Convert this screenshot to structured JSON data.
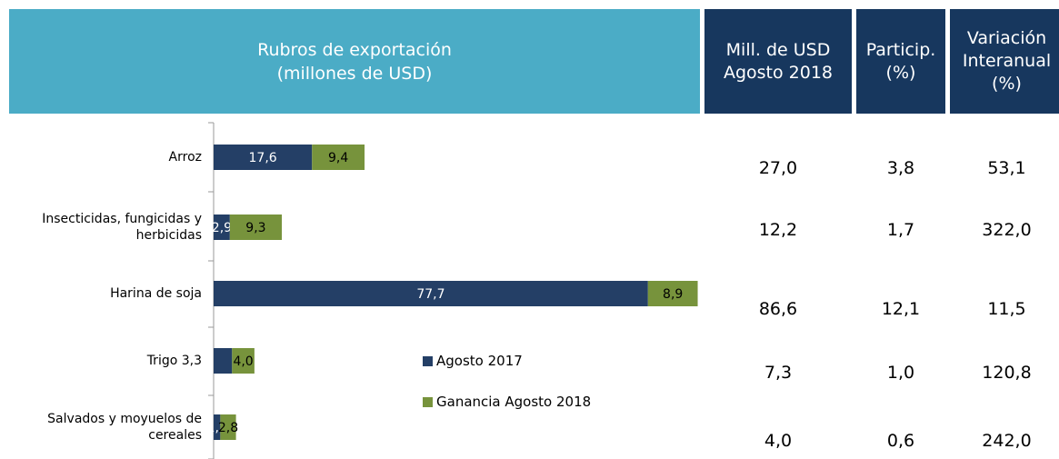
{
  "chart_data": {
    "type": "stacked_barh",
    "header": [
      "Rubros de exportación",
      "(millones de USD)"
    ],
    "categories": [
      "Arroz",
      "Insecticidas, fungicidas y herbicidas",
      "Harina de soja",
      "Trigo 3,3",
      "Salvados y moyuelos de cereales"
    ],
    "series": [
      {
        "name": "Agosto 2017",
        "color": "#243f66",
        "values": [
          17.6,
          2.9,
          77.7,
          3.3,
          1.2
        ],
        "value_labels": [
          "17,6",
          "2,9",
          "77,7",
          null,
          "1,2"
        ]
      },
      {
        "name": "Ganancia Agosto 2018",
        "color": "#77933c",
        "values": [
          9.4,
          9.3,
          8.9,
          4.0,
          2.8
        ],
        "value_labels": [
          "9,4",
          "9,3",
          "8,9",
          "4,0",
          "2,8"
        ]
      }
    ],
    "xlim": [
      0,
      87
    ]
  },
  "table": {
    "columns": [
      "Mill. de USD Agosto 2018",
      "Particip. (%)",
      "Variación Interanual (%)"
    ],
    "rows": [
      [
        "27,0",
        "3,8",
        "53,1"
      ],
      [
        "12,2",
        "1,7",
        "322,0"
      ],
      [
        "86,6",
        "12,1",
        "11,5"
      ],
      [
        "7,3",
        "1,0",
        "120,8"
      ],
      [
        "4,0",
        "0,6",
        "242,0"
      ]
    ]
  }
}
